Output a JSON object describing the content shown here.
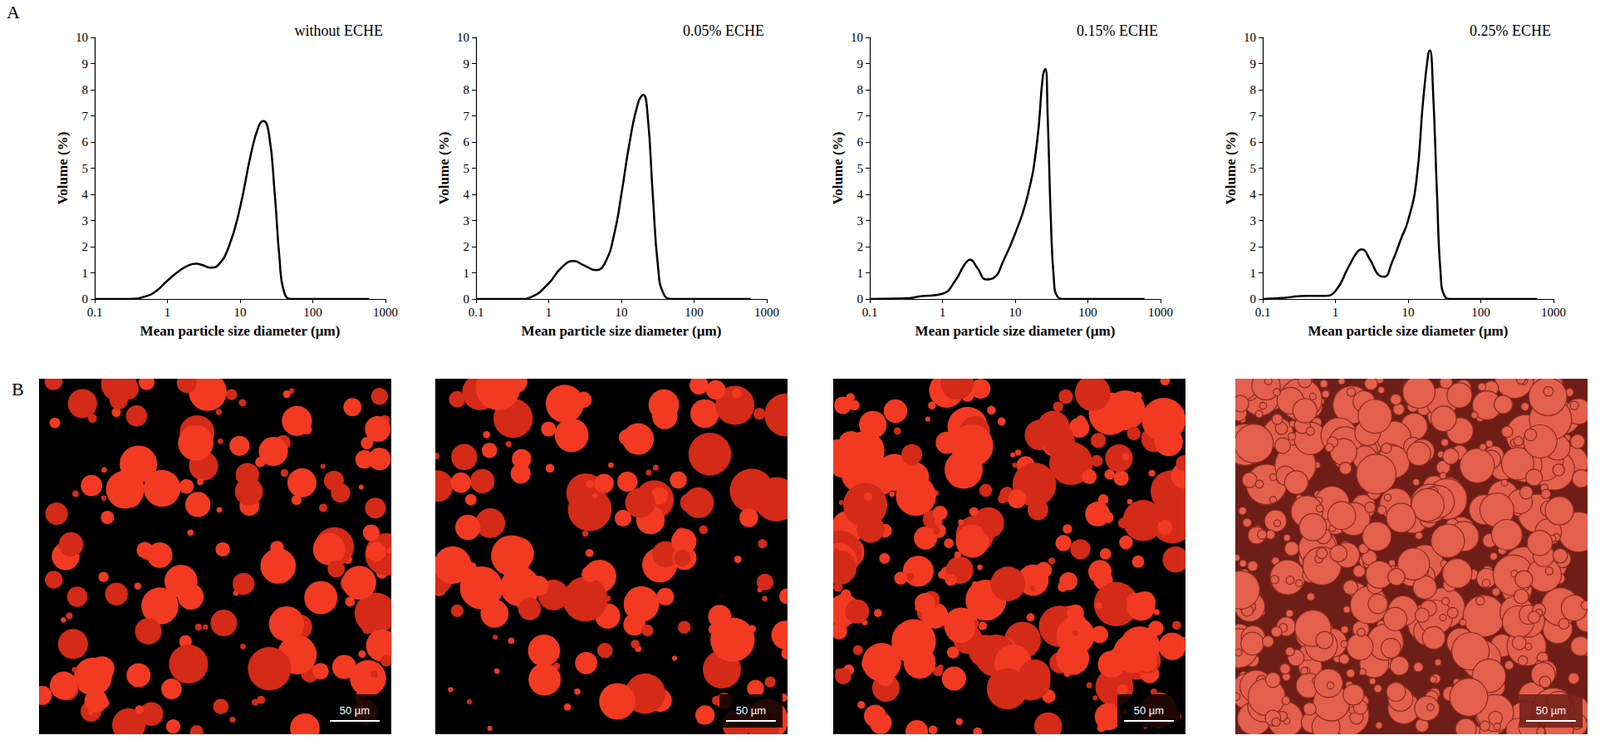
{
  "chart_data": [
    {
      "type": "line",
      "title": "without ECHE",
      "x_label": "Mean particle size diameter (µm)",
      "y_label": "Volume (%)",
      "log": "x",
      "grid": false,
      "xlim": [
        0.1,
        1000
      ],
      "xticks": [
        0.1,
        1,
        10,
        100,
        1000
      ],
      "ylim": [
        0,
        10
      ],
      "yticks": [
        0,
        1,
        2,
        3,
        4,
        5,
        6,
        7,
        8,
        9,
        10
      ],
      "color": "#000000",
      "x": [
        0.1,
        0.3,
        0.5,
        0.7,
        1,
        1.5,
        2,
        2.5,
        3,
        4,
        5,
        7,
        10,
        14,
        18,
        21,
        25,
        30,
        35,
        40,
        50,
        100,
        600
      ],
      "values": [
        0,
        0,
        0.1,
        0.3,
        0.7,
        1.1,
        1.3,
        1.35,
        1.3,
        1.2,
        1.3,
        2,
        3.5,
        5.5,
        6.6,
        6.8,
        6.3,
        4,
        1.5,
        0.3,
        0,
        0,
        0
      ]
    },
    {
      "type": "line",
      "title": "0.05% ECHE",
      "x_label": "Mean particle size diameter (µm)",
      "y_label": "Volume (%)",
      "log": "x",
      "grid": false,
      "xlim": [
        0.1,
        1000
      ],
      "xticks": [
        0.1,
        1,
        10,
        100,
        1000
      ],
      "ylim": [
        0,
        10
      ],
      "yticks": [
        0,
        1,
        2,
        3,
        4,
        5,
        6,
        7,
        8,
        9,
        10
      ],
      "color": "#000000",
      "x": [
        0.1,
        0.4,
        0.6,
        1,
        1.5,
        2.2,
        3,
        4.5,
        6,
        8,
        10,
        13,
        17,
        20,
        23,
        27,
        32,
        38,
        50,
        600
      ],
      "values": [
        0,
        0,
        0.1,
        0.6,
        1.2,
        1.45,
        1.3,
        1.1,
        1.4,
        2.5,
        4,
        6,
        7.5,
        7.8,
        7,
        4,
        1.2,
        0.2,
        0,
        0
      ]
    },
    {
      "type": "line",
      "title": "0.15% ECHE",
      "x_label": "Mean particle size diameter (µm)",
      "y_label": "Volume (%)",
      "log": "x",
      "grid": false,
      "xlim": [
        0.1,
        1000
      ],
      "xticks": [
        0.1,
        1,
        10,
        100,
        1000
      ],
      "ylim": [
        0,
        10
      ],
      "yticks": [
        0,
        1,
        2,
        3,
        4,
        5,
        6,
        7,
        8,
        9,
        10
      ],
      "color": "#000000",
      "x": [
        0.1,
        0.3,
        0.5,
        1,
        1.5,
        2,
        2.4,
        3,
        4,
        5,
        7,
        10,
        15,
        20,
        24,
        26,
        28,
        31,
        34,
        38,
        50,
        600
      ],
      "values": [
        0,
        0.02,
        0.1,
        0.2,
        0.7,
        1.3,
        1.5,
        1.2,
        0.75,
        0.8,
        1.5,
        2.5,
        4,
        6,
        8.5,
        8.8,
        7,
        3,
        0.8,
        0.1,
        0,
        0
      ]
    },
    {
      "type": "line",
      "title": "0.25% ECHE",
      "x_label": "Mean particle size diameter (µm)",
      "y_label": "Volume (%)",
      "log": "x",
      "grid": false,
      "xlim": [
        0.1,
        1000
      ],
      "xticks": [
        0.1,
        1,
        10,
        100,
        1000
      ],
      "ylim": [
        0,
        10
      ],
      "yticks": [
        0,
        1,
        2,
        3,
        4,
        5,
        6,
        7,
        8,
        9,
        10
      ],
      "color": "#000000",
      "x": [
        0.1,
        0.2,
        0.3,
        0.4,
        0.7,
        1,
        1.5,
        2,
        2.3,
        3,
        4,
        4.7,
        6,
        8,
        10,
        13,
        16,
        19,
        20,
        22,
        25,
        28,
        32,
        40,
        600
      ],
      "values": [
        0,
        0.05,
        0.1,
        0.12,
        0.12,
        0.3,
        1.2,
        1.8,
        1.9,
        1.5,
        0.9,
        0.85,
        1.4,
        2.3,
        3,
        4.5,
        7.5,
        9.4,
        9.5,
        8,
        4,
        1,
        0.1,
        0,
        0
      ]
    }
  ],
  "panel_labels": [
    "A",
    "B"
  ],
  "micrographs": [
    {
      "scale_bar": "50 µm"
    },
    {
      "scale_bar": "50 µm"
    },
    {
      "scale_bar": "50 µm"
    },
    {
      "scale_bar": "50 µm"
    }
  ]
}
